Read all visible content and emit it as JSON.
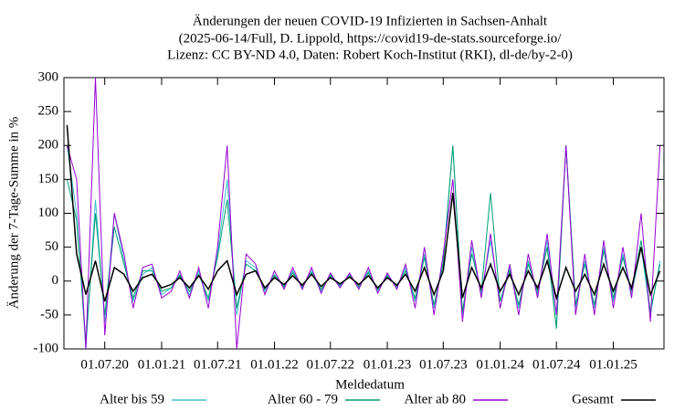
{
  "chart_data": {
    "type": "line",
    "title": [
      "Änderungen der neuen COVID-19 Infizierten in Sachsen-Anhalt",
      "(2025-06-14/Full, D. Lippold, https://covid19-de-stats.sourceforge.io/",
      "Lizenz: CC BY-ND 4.0, Daten: Robert Koch-Institut (RKI), dl-de/by-2-0)"
    ],
    "xlabel": "Meldedatum",
    "ylabel": "Änderung der 7-Tage-Summe in %",
    "x": [
      "2020-03-01",
      "2020-04-01",
      "2020-05-01",
      "2020-06-01",
      "2020-07-01",
      "2020-08-01",
      "2020-09-01",
      "2020-10-01",
      "2020-11-01",
      "2020-12-01",
      "2021-01-01",
      "2021-02-01",
      "2021-03-01",
      "2021-04-01",
      "2021-05-01",
      "2021-06-01",
      "2021-07-01",
      "2021-08-01",
      "2021-09-01",
      "2021-10-01",
      "2021-11-01",
      "2021-12-01",
      "2022-01-01",
      "2022-02-01",
      "2022-03-01",
      "2022-04-01",
      "2022-05-01",
      "2022-06-01",
      "2022-07-01",
      "2022-08-01",
      "2022-09-01",
      "2022-10-01",
      "2022-11-01",
      "2022-12-01",
      "2023-01-01",
      "2023-02-01",
      "2023-03-01",
      "2023-04-01",
      "2023-05-01",
      "2023-06-01",
      "2023-07-01",
      "2023-08-01",
      "2023-09-01",
      "2023-10-01",
      "2023-11-01",
      "2023-12-01",
      "2024-01-01",
      "2024-02-01",
      "2024-03-01",
      "2024-04-01",
      "2024-05-01",
      "2024-06-01",
      "2024-07-01",
      "2024-08-01",
      "2024-09-01",
      "2024-10-01",
      "2024-11-01",
      "2024-12-01",
      "2025-01-01",
      "2025-02-01",
      "2025-03-01",
      "2025-04-01",
      "2025-05-01",
      "2025-06-01"
    ],
    "series": [
      {
        "name": "Alter bis 59",
        "color": "#40bfd0",
        "values": [
          200,
          100,
          -100,
          120,
          -60,
          100,
          30,
          -30,
          10,
          20,
          -20,
          -10,
          10,
          -20,
          15,
          -30,
          40,
          150,
          -50,
          30,
          20,
          -15,
          10,
          -10,
          15,
          -10,
          15,
          -15,
          10,
          -8,
          10,
          -10,
          15,
          -15,
          10,
          -10,
          20,
          -30,
          40,
          -40,
          30,
          200,
          -50,
          50,
          -20,
          60,
          -30,
          20,
          -40,
          30,
          -20,
          60,
          -70,
          200,
          -40,
          30,
          -40,
          50,
          -30,
          40,
          -20,
          50,
          -50,
          30
        ]
      },
      {
        "name": "Alter 60 - 79",
        "color": "#009e73",
        "values": [
          150,
          90,
          -90,
          100,
          -50,
          80,
          25,
          -25,
          15,
          15,
          -15,
          -10,
          8,
          -15,
          10,
          -25,
          35,
          120,
          -40,
          25,
          15,
          -12,
          8,
          -8,
          12,
          -8,
          12,
          -12,
          8,
          -6,
          8,
          -8,
          12,
          -12,
          8,
          -8,
          15,
          -25,
          35,
          -35,
          25,
          200,
          -45,
          40,
          -15,
          130,
          -30,
          15,
          -35,
          25,
          -15,
          50,
          -70,
          200,
          -35,
          25,
          -35,
          45,
          -25,
          35,
          -15,
          60,
          -45,
          25
        ]
      },
      {
        "name": "Alter ab 80",
        "color": "#9400d3",
        "values": [
          200,
          150,
          -100,
          300,
          -80,
          100,
          40,
          -40,
          20,
          25,
          -25,
          -15,
          15,
          -25,
          20,
          -40,
          50,
          200,
          -100,
          40,
          25,
          -20,
          15,
          -12,
          20,
          -12,
          20,
          -18,
          12,
          -10,
          12,
          -12,
          20,
          -18,
          12,
          -12,
          25,
          -40,
          50,
          -50,
          40,
          150,
          -60,
          60,
          -25,
          70,
          -40,
          25,
          -50,
          40,
          -25,
          70,
          -50,
          200,
          -50,
          40,
          -50,
          60,
          -40,
          50,
          -25,
          100,
          -60,
          200
        ]
      },
      {
        "name": "Gesamt",
        "color": "#000000",
        "values": [
          230,
          40,
          -20,
          30,
          -30,
          20,
          10,
          -15,
          5,
          10,
          -10,
          -5,
          5,
          -10,
          8,
          -12,
          15,
          30,
          -20,
          10,
          15,
          -10,
          5,
          -5,
          8,
          -6,
          10,
          -8,
          5,
          -4,
          6,
          -5,
          8,
          -10,
          5,
          -6,
          10,
          -15,
          20,
          -20,
          15,
          130,
          -25,
          20,
          -10,
          25,
          -15,
          10,
          -20,
          15,
          -10,
          30,
          -25,
          20,
          -15,
          10,
          -20,
          25,
          -15,
          20,
          -10,
          50,
          -20,
          15
        ]
      }
    ],
    "xlim": [
      "2020-02-20",
      "2025-06-14"
    ],
    "xticks": [
      {
        "value": "2020-07-01",
        "label": "01.07.20"
      },
      {
        "value": "2021-01-01",
        "label": "01.01.21"
      },
      {
        "value": "2021-07-01",
        "label": "01.07.21"
      },
      {
        "value": "2022-01-01",
        "label": "01.01.22"
      },
      {
        "value": "2022-07-01",
        "label": "01.07.22"
      },
      {
        "value": "2023-01-01",
        "label": "01.01.23"
      },
      {
        "value": "2023-07-01",
        "label": "01.07.23"
      },
      {
        "value": "2024-01-01",
        "label": "01.01.24"
      },
      {
        "value": "2024-07-01",
        "label": "01.07.24"
      },
      {
        "value": "2025-01-01",
        "label": "01.01.25"
      }
    ],
    "ylim": [
      -100,
      300
    ],
    "yticks": [
      -100,
      -50,
      0,
      50,
      100,
      150,
      200,
      250,
      300
    ],
    "legend": "bottom"
  }
}
